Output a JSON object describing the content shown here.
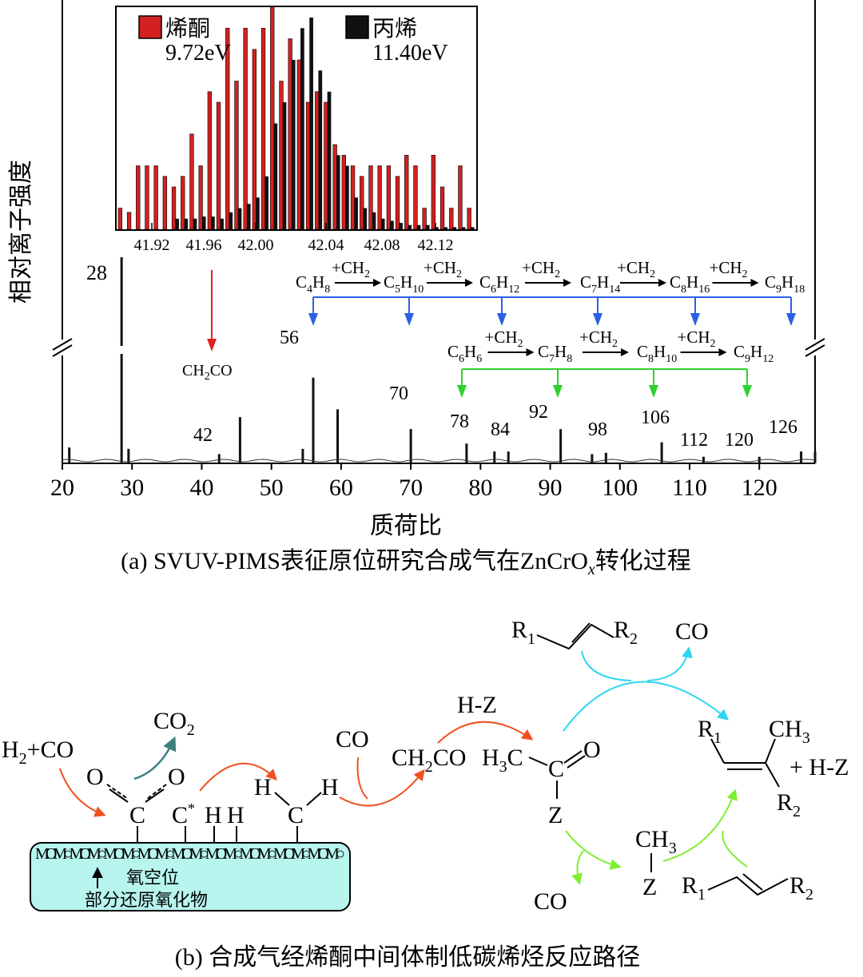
{
  "panel_a": {
    "ylabel": "相对离子强度",
    "xlabel": "质荷比",
    "caption_prefix": "(a) SVUV-PIMS表征原位研究合成气在ZnCrO",
    "caption_sub": "x",
    "caption_suffix": "转化过程",
    "peak_labels": [
      "28",
      "42",
      "56",
      "70",
      "78",
      "84",
      "92",
      "98",
      "106",
      "112",
      "120",
      "126"
    ],
    "ch2co_label": "CH2CO",
    "inset": {
      "legend_ketene": "烯酮",
      "legend_ketene_ev": "9.72eV",
      "legend_propene": "丙烯",
      "legend_propene_ev": "11.40eV",
      "ticks": [
        "41.92",
        "41.96",
        "42.00",
        "42.04",
        "42.08",
        "42.12"
      ],
      "red_color": "#d42020",
      "black_color": "#111111"
    },
    "blue_series": {
      "species": [
        {
          "main": "C",
          "sub": "4",
          "h": "H",
          "hsub": "8"
        },
        {
          "main": "C",
          "sub": "5",
          "h": "H",
          "hsub": "10"
        },
        {
          "main": "C",
          "sub": "6",
          "h": "H",
          "hsub": "12"
        },
        {
          "main": "C",
          "sub": "7",
          "h": "H",
          "hsub": "14"
        },
        {
          "main": "C",
          "sub": "8",
          "h": "H",
          "hsub": "16"
        },
        {
          "main": "C",
          "sub": "9",
          "h": "H",
          "hsub": "18"
        }
      ],
      "step": "+CH2",
      "color": "#2a5fe6"
    },
    "green_series": {
      "species": [
        {
          "main": "C",
          "sub": "6",
          "h": "H",
          "hsub": "6"
        },
        {
          "main": "C",
          "sub": "7",
          "h": "H",
          "hsub": "8"
        },
        {
          "main": "C",
          "sub": "8",
          "h": "H",
          "hsub": "10"
        },
        {
          "main": "C",
          "sub": "9",
          "h": "H",
          "hsub": "12"
        }
      ],
      "step": "+CH2",
      "color": "#2fd12f"
    },
    "arrow_color": "#e02020",
    "chart_data": {
      "type": "bar",
      "xlabel": "质荷比",
      "ylabel": "相对离子强度",
      "xlim": [
        20,
        128
      ],
      "x_ticks": [
        20,
        30,
        40,
        50,
        60,
        70,
        80,
        90,
        100,
        110,
        120
      ],
      "y_axis_break": true,
      "peaks": [
        {
          "x": 21,
          "y": 0.12
        },
        {
          "x": 28.5,
          "y": 1.6
        },
        {
          "x": 29.5,
          "y": 0.11
        },
        {
          "x": 42.5,
          "y": 0.07
        },
        {
          "x": 45.5,
          "y": 0.35
        },
        {
          "x": 54.5,
          "y": 0.11
        },
        {
          "x": 56,
          "y": 0.65
        },
        {
          "x": 59.5,
          "y": 0.41
        },
        {
          "x": 70,
          "y": 0.26
        },
        {
          "x": 78,
          "y": 0.15
        },
        {
          "x": 82,
          "y": 0.09
        },
        {
          "x": 84,
          "y": 0.09
        },
        {
          "x": 91.5,
          "y": 0.26
        },
        {
          "x": 96,
          "y": 0.07
        },
        {
          "x": 98,
          "y": 0.08
        },
        {
          "x": 106,
          "y": 0.16
        },
        {
          "x": 112,
          "y": 0.05
        },
        {
          "x": 120,
          "y": 0.05
        },
        {
          "x": 126,
          "y": 0.09
        },
        {
          "x": 128,
          "y": 0.09
        }
      ],
      "inset": {
        "type": "bar",
        "x_ticks": [
          41.92,
          41.96,
          42.0,
          42.04,
          42.08,
          42.12
        ],
        "series": [
          {
            "name": "烯酮",
            "note": "9.72eV",
            "values": [
              0.1,
              0.08,
              0.3,
              0.3,
              0.3,
              0.25,
              0.2,
              0.25,
              0.45,
              0.3,
              0.65,
              0.6,
              0.95,
              0.7,
              0.95,
              0.85,
              0.95,
              1.05,
              0.7,
              0.9,
              0.8,
              0.6,
              0.65,
              0.6,
              0.4,
              0.35,
              0.3,
              0.25,
              0.3,
              0.3,
              0.3,
              0.25,
              0.35,
              0.3,
              0.1,
              0.35,
              0.2,
              0.1,
              0.3,
              0.1
            ]
          },
          {
            "name": "丙烯",
            "note": "11.40eV",
            "values": [
              0.0,
              0.0,
              0.0,
              0.0,
              0.0,
              0.0,
              0.05,
              0.05,
              0.05,
              0.06,
              0.06,
              0.05,
              0.08,
              0.1,
              0.12,
              0.15,
              0.25,
              0.5,
              0.6,
              0.8,
              0.95,
              1.0,
              0.75,
              0.65,
              0.35,
              0.3,
              0.15,
              0.1,
              0.08,
              0.05,
              0.04,
              0.03,
              0.02,
              0.02,
              0.02,
              0.01,
              0.01,
              0.01,
              0.01,
              0.01
            ]
          }
        ]
      }
    }
  },
  "panel_b": {
    "caption": "(b) 合成气经烯酮中间体制低碳烯烃反应路径",
    "h2co_h": "H",
    "h2co_sub": "2",
    "h2co_rest": "+CO",
    "co2_main": "CO",
    "co2_sub": "2",
    "surface_text": "MOMOMOMOMOMOMOMOMOM",
    "vacancy_label": "氧空位",
    "reduced_oxide_label": "部分还原氧化物",
    "co_top": "CO",
    "co_mid": "CO",
    "co_bottom": "CO",
    "ch2co_text": "CH2CO",
    "hz_top": "H-Z",
    "h3c": "H3C",
    "r1": "R1",
    "r2": "R2",
    "ch3": "CH3",
    "plus_hz": "+ H-Z",
    "z": "Z",
    "c_star": "C*",
    "cyan_color": "#2cd6f0",
    "green_color": "#80ee30",
    "orange_color": "#f05020",
    "teal_color": "#3f7f80",
    "surface_fill": "#b7f5ee"
  }
}
